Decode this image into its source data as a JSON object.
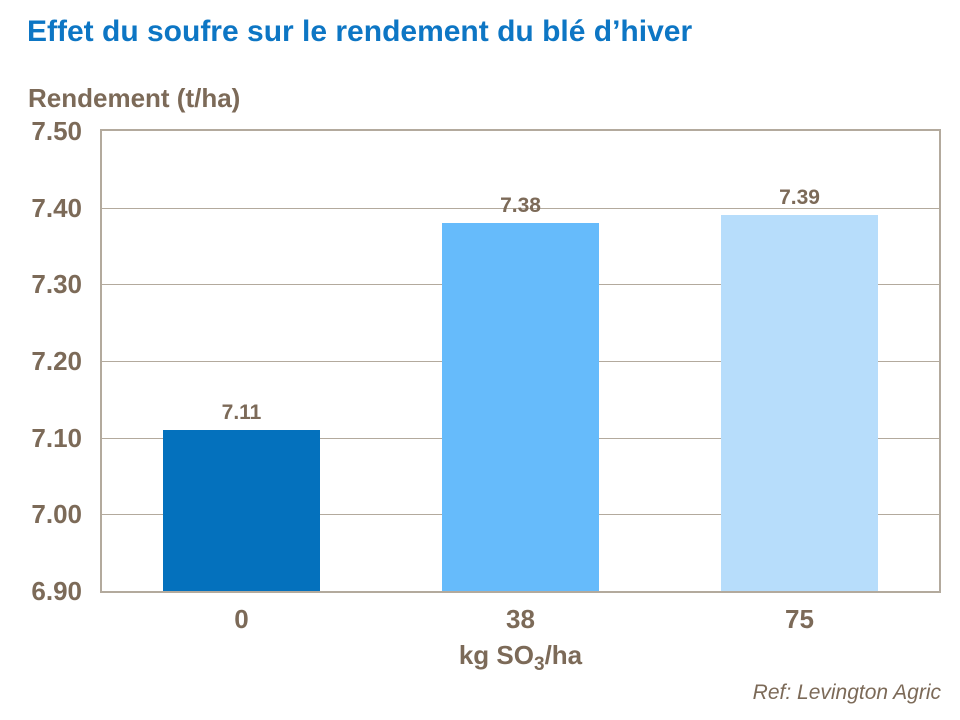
{
  "chart_data": {
    "type": "bar",
    "title": "Effet du soufre sur le rendement du blé d’hiver",
    "ylabel": "Rendement (t/ha)",
    "xlabel": "kg SO3/ha",
    "xlabel_parts": {
      "prefix": "kg SO",
      "subscript": "3",
      "suffix": "/ha"
    },
    "categories": [
      "0",
      "38",
      "75"
    ],
    "values": [
      7.11,
      7.38,
      7.39
    ],
    "value_labels": [
      "7.11",
      "7.38",
      "7.39"
    ],
    "bar_colors": [
      "#0471BD",
      "#66BBFB",
      "#B7DDFB"
    ],
    "ylim": [
      6.9,
      7.5
    ],
    "yticks": [
      7.5,
      7.4,
      7.3,
      7.2,
      7.1,
      7.0,
      6.9
    ],
    "ytick_labels": [
      "7.50",
      "7.40",
      "7.30",
      "7.20",
      "7.10",
      "7.00",
      "6.90"
    ],
    "grid": true,
    "legend": "none",
    "annotation": "Ref: Levington Agric"
  },
  "colors": {
    "title_text": "#0D76C4",
    "axis_text": "#7C6A58",
    "plot_border": "#B3AA9D",
    "gridline": "#B3AA9D",
    "background": "#FFFFFF"
  }
}
